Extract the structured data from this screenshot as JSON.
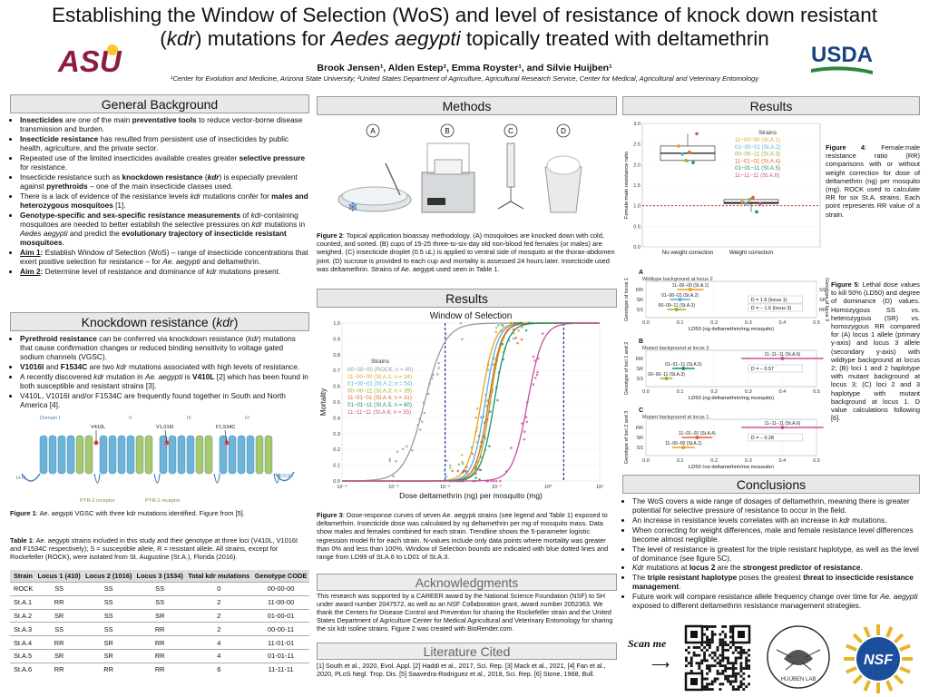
{
  "poster": {
    "title_line1": "Establishing the Window of Selection (WoS) and level of resistance of knock down resistant",
    "title_line2_a": "(",
    "title_line2_kdr": "kdr",
    "title_line2_b": ") mutations for ",
    "title_line2_species": "Aedes aegypti",
    "title_line2_c": " topically treated with deltamethrin",
    "authors": "Brook Jensen¹, Alden Estep², Emma Royster¹, and Silvie Huijben¹",
    "affiliations": "¹Center for Evolution and Medicine, Arizona State University; ²United States Department of Agriculture, Agricultural Research Service, Center for Medical, Agricultural and Veterinary Entomology",
    "logo_left": "ASU",
    "logo_right": "USDA"
  },
  "background": {
    "header": "General Background",
    "items": [
      "Insecticides are one of the main preventative tools to reduce vector-borne disease transmission and burden.",
      "Insecticide resistance has resulted from persistent use of insecticides by public health, agriculture, and the private sector.",
      "Repeated use of the limited insecticides available creates greater selective pressure for resistance.",
      "Insecticide resistance such as knockdown resistance (kdr) is especially prevalent against pyrethroids – one of the main insecticide classes used.",
      "There is a lack of evidence of the resistance levels kdr mutations confer for males and heterozygous mosquitoes [1].",
      "Genotype-specific and sex-specific resistance measurements of kdr-containing mosquitoes are needed to better establish the selective pressures on kdr mutations in Aedes aegypti and predict the evolutionary trajectory of insecticide resistant mosquitoes.",
      "Aim 1: Establish Window of Selection (WoS) – range of insecticide concentrations that exert positive selection for resistance – for Ae. aegypti and deltamethrin.",
      "Aim 2: Determine level of resistance and dominance of kdr mutations present."
    ]
  },
  "kdr": {
    "header": "Knockdown resistance (kdr)",
    "items": [
      "Pyrethroid resistance can be conferred via knockdown resistance (kdr) mutations that cause confirmation changes or reduced binding sensitivity to voltage gated sodium channels (VGSC).",
      "V1016I and F1534C are two kdr mutations associated with high levels of resistance.",
      "A recently discovered kdr mutation in Ae. aegypti is V410L [2] which has been found in both susceptible and resistant strains [3].",
      "V410L, V1016I and/or F1534C are frequently found together in South and North America [4]."
    ],
    "domains": [
      "Domain I",
      "II",
      "III",
      "IV"
    ],
    "mutations": [
      "V410L",
      "V1,016I",
      "F1,534C"
    ],
    "labels": [
      "H-N",
      "COOH",
      "PYR-2 receptor",
      "PYR-1 receptor"
    ],
    "fig1_caption_bold": "Figure 1",
    "fig1_caption": ": Ae. aegypti VGSC with three kdr mutations identified. Figure from [5]."
  },
  "table1": {
    "caption_bold": "Table 1",
    "caption": ": Ae. aegypti strains included in this study and their genotype at three loci (V410L, V1016I and F1534C respectively); S = susceptible allele, R = resistant allele. All strains, except for Rockefeller (ROCK), were isolated from St. Augustine (St.A.), Florida (2016).",
    "headers": [
      "Strain",
      "Locus 1 (410)",
      "Locus 2 (1016)",
      "Locus 3 (1534)",
      "Total kdr mutations",
      "Genotype CODE"
    ],
    "rows": [
      [
        "ROCK",
        "SS",
        "SS",
        "SS",
        "0",
        "00-00-00"
      ],
      [
        "St.A.1",
        "RR",
        "SS",
        "SS",
        "2",
        "11-00-00"
      ],
      [
        "St.A.2",
        "SR",
        "SS",
        "SR",
        "2",
        "01-00-01"
      ],
      [
        "St.A.3",
        "SS",
        "SS",
        "RR",
        "2",
        "00-00-11"
      ],
      [
        "St.A.4",
        "RR",
        "SR",
        "RR",
        "4",
        "11-01-01"
      ],
      [
        "St.A.5",
        "SR",
        "SR",
        "RR",
        "4",
        "01-01-11"
      ],
      [
        "St.A.6",
        "RR",
        "RR",
        "RR",
        "6",
        "11-11-11"
      ]
    ]
  },
  "methods": {
    "header": "Methods",
    "steps": [
      "A",
      "B",
      "C",
      "D"
    ],
    "fig2_caption_bold": "Figure 2",
    "fig2_caption": ": Topical application bioassay methodology. (A) mosquitoes are knocked down with cold, counted, and sorted. (B) cups of 15-25 three-to-six-day old non-blood fed females (or males) are weighed. (C) insecticide droplet (0.5 uL) is applied to ventral side of mosquito at the thorax-abdomen joint. (D) sucrose is provided to each cup and mortality is assessed 24 hours later. Insecticide used was deltamethrin. Strains of Ae. aegypti used seen in Table 1."
  },
  "results_mid": {
    "header": "Results",
    "fig3_caption_bold": "Figure 3",
    "fig3_caption": ": Dose-response curves of seven Ae. aegypti strains (see legend and Table 1) exposed to deltamethrin. Insecticide dose was calculated by ng deltamethrin per mg of mosquito mass. Data show males and females combined for each strain. Trendline shows the 5-parameter logistic regression model fit for each strain. N-values include only data points where mortality was greater than 0% and less than 100%. Window of Selection bounds are indicated with blue dotted lines and range from LD99 of St.A.6 to LD01 of St.A.3."
  },
  "chart_data": [
    {
      "type": "scatter",
      "title": "Window of Selection",
      "xlabel": "Dose deltamethrin (ng) per mosquito (mg)",
      "ylabel": "Mortality",
      "x_scale": "log",
      "xlim": [
        0.0001,
        10
      ],
      "ylim": [
        0,
        1.0
      ],
      "x_ticks": [
        "10⁻⁴",
        "10⁻³",
        "10⁻²",
        "10⁻¹",
        "10⁰",
        "10¹"
      ],
      "y_ticks": [
        "0.0",
        "0.1",
        "0.2",
        "0.3",
        "0.4",
        "0.5",
        "0.6",
        "0.7",
        "0.8",
        "0.9",
        "1.0"
      ],
      "legend_title": "Strains",
      "legend_position": "left",
      "window_bounds": [
        0.01,
        2.0
      ],
      "series": [
        {
          "name": "00−00−00 (ROCK; n = 40)",
          "color": "#9a9a9a",
          "ld50": 0.004,
          "slope": 2.2
        },
        {
          "name": "11−00−00 (St.A.1; n = 34)",
          "color": "#e7a21d",
          "ld50": 0.05,
          "slope": 3.4
        },
        {
          "name": "01−00−01 (St.A.2; n = 54)",
          "color": "#4fb3e6",
          "ld50": 0.06,
          "slope": 3.6
        },
        {
          "name": "00−00−11 (St.A.3; n = 39)",
          "color": "#9aaf2a",
          "ld50": 0.075,
          "slope": 3.8
        },
        {
          "name": "11−01−01 (St.A.4; n = 31)",
          "color": "#e4602a",
          "ld50": 0.07,
          "slope": 3.6
        },
        {
          "name": "01−01−11 (St.A.5; n = 60)",
          "color": "#1a8f6a",
          "ld50": 0.09,
          "slope": 3.4
        },
        {
          "name": "11−11−11 (St.A.6; n = 35)",
          "color": "#c8509a",
          "ld50": 0.4,
          "slope": 3.0
        }
      ]
    },
    {
      "type": "box",
      "ylabel": "Female:male resistance ratio",
      "ylim": [
        0,
        3.0
      ],
      "categories": [
        "No weight correction",
        "Weight correction"
      ],
      "reference_line": 1.0,
      "legend_title": "Strains",
      "series": [
        {
          "name": "11−00−00 (St.A.1)",
          "color": "#e7a21d",
          "values": [
            2.45,
            1.1
          ]
        },
        {
          "name": "01−00−01 (St.A.2)",
          "color": "#4fb3e6",
          "values": [
            2.25,
            1.05
          ]
        },
        {
          "name": "00−00−11 (St.A.3)",
          "color": "#9aaf2a",
          "values": [
            2.1,
            1.15
          ]
        },
        {
          "name": "11−01−01 (St.A.4)",
          "color": "#e4602a",
          "values": [
            2.3,
            1.2
          ]
        },
        {
          "name": "01−01−11 (St.A.5)",
          "color": "#1a8f6a",
          "values": [
            2.05,
            0.85
          ]
        },
        {
          "name": "11−11−11 (St.A.6)",
          "color": "#c8509a",
          "values": [
            2.75,
            1.05
          ]
        }
      ]
    },
    {
      "type": "errorbar",
      "panels": [
        {
          "label": "A",
          "subtitle": "Wildtype background at locus 2",
          "y_axis_left": "Genotype of locus 1",
          "y_axis_right": "Genotype of locus 3",
          "xlabel": "LD50 (ng deltamethrin/mg mosquito)",
          "rows": [
            {
              "left": "RR",
              "right": "SS",
              "name": "11−00−00 (St.A.1)",
              "color": "#e7a21d",
              "ld50": 0.13
            },
            {
              "left": "SR",
              "right": "SR",
              "name": "01−00−01 (St.A.2)",
              "color": "#4fb3e6",
              "ld50": 0.1
            },
            {
              "left": "SS",
              "right": "RR",
              "name": "00−00−11 (St.A.3)",
              "color": "#9aaf2a",
              "ld50": 0.09
            }
          ],
          "d_values": [
            "D = 1.6 (locus 1)",
            "D = − 1.6 (locus 3)"
          ]
        },
        {
          "label": "B",
          "subtitle": "Mutant background at locus 3",
          "y_axis_left": "Genotype of loci 1 and 2",
          "xlabel": "LD50 (ng deltamethrin/mg mosquito)",
          "rows": [
            {
              "left": "RR",
              "name": "11−11−11 (St.A.6)",
              "color": "#c8509a",
              "ld50": 0.4
            },
            {
              "left": "SR",
              "name": "01−01−11 (St.A.5)",
              "color": "#1a8f6a",
              "ld50": 0.11
            },
            {
              "left": "SS",
              "name": "00−00−11 (St.A.3)",
              "color": "#9aaf2a",
              "ld50": 0.06
            }
          ],
          "d_values": [
            "D = − 0.57"
          ]
        },
        {
          "label": "C",
          "subtitle": "Mutant background at locus 1",
          "y_axis_left": "Genotype of loci 2 and 3",
          "xlabel": "LD50 (ng deltamethrin/mg mosquito)",
          "rows": [
            {
              "left": "RR",
              "name": "11−11−11 (St.A.6)",
              "color": "#c8509a",
              "ld50": 0.4
            },
            {
              "left": "SR",
              "name": "11−01−01 (St.A.4)",
              "color": "#e4602a",
              "ld50": 0.15
            },
            {
              "left": "SS",
              "name": "11−00−00 (St.A.1)",
              "color": "#e7a21d",
              "ld50": 0.11
            }
          ],
          "d_values": [
            "D = − 0.28"
          ]
        }
      ],
      "x_ticks": [
        "0.0",
        "0.1",
        "0.2",
        "0.3",
        "0.4",
        "0.5"
      ]
    }
  ],
  "results_right": {
    "header": "Results",
    "fig4_caption_bold": "Figure 4",
    "fig4_caption": ": Female:male resistance ratio (RR) comparisons with or without weight correction for dose of deltamethrin (ng) per mosquito (mg). ROCK used to calculate RR for six St.A. strains. Each point represents RR value of a strain.",
    "fig5_caption_bold": "Figure 5",
    "fig5_caption": ": Lethal dose values to kill 50% (LD50) and degree of dominance (D) values. Homozygous SS vs. heterozygous (SR) vs. homozygous RR compared for (A) locus 1 allele (primary y-axis) and locus 3 allele (secondary y-axis) with wildtype background at locus 2; (B) loci 1 and 2 haplotype with mutant background at locus 3; (C) loci 2 and 3 haplotype with mutant background at locus 1. D value calculations following [6]."
  },
  "acknowledgments": {
    "header": "Acknowledgments",
    "text": "This research was supported by a CAREER award by the National Science Foundation (NSF) to SH under award number 2047572, as well as an NSF Collaboration grant, award number 2052363. We thank the Centers for Disease Control and Prevention for sharing the Rockefeller strain and the United States Department of Agriculture Center for Medical Agricultural and Veterinary Entomology for sharing the six kdr isoline strains. Figure 2 was created with BioRender.com."
  },
  "literature": {
    "header": "Literature Cited",
    "text": "[1] South et al., 2020, Evol. Appl. [2] Haddi et al., 2017, Sci. Rep. [3] Mack et al., 2021, [4] Fan et al., 2020, PLoS Negl. Trop. Dis. [5] Saavedra-Rodriguez et al., 2018, Sci. Rep. [6] Stone, 1968, Bull."
  },
  "conclusions": {
    "header": "Conclusions",
    "items": [
      "The WoS covers a wide range of dosages of deltamethrin, meaning there is greater potential for selective pressure of resistance to occur in the field.",
      "An increase in resistance levels correlates with an increase in kdr mutations.",
      "When correcting for weight differences, male and female resistance level differences become almost negligible.",
      "The level of resistance is greatest for the triple resistant haplotype, as well as the level of dominance (see figure 5C).",
      "Kdr mutations at locus 2 are the strongest predictor of resistance.",
      "The triple resistant haplotype poses the greatest threat to insecticide resistance management.",
      "Future work will compare resistance allele frequency change over time for Ae. aegypti exposed to different deltamethrin resistance management strategies."
    ],
    "scan_me": "Scan me",
    "huijben_lab": "HUIJBEN LAB",
    "nsf": "NSF"
  }
}
